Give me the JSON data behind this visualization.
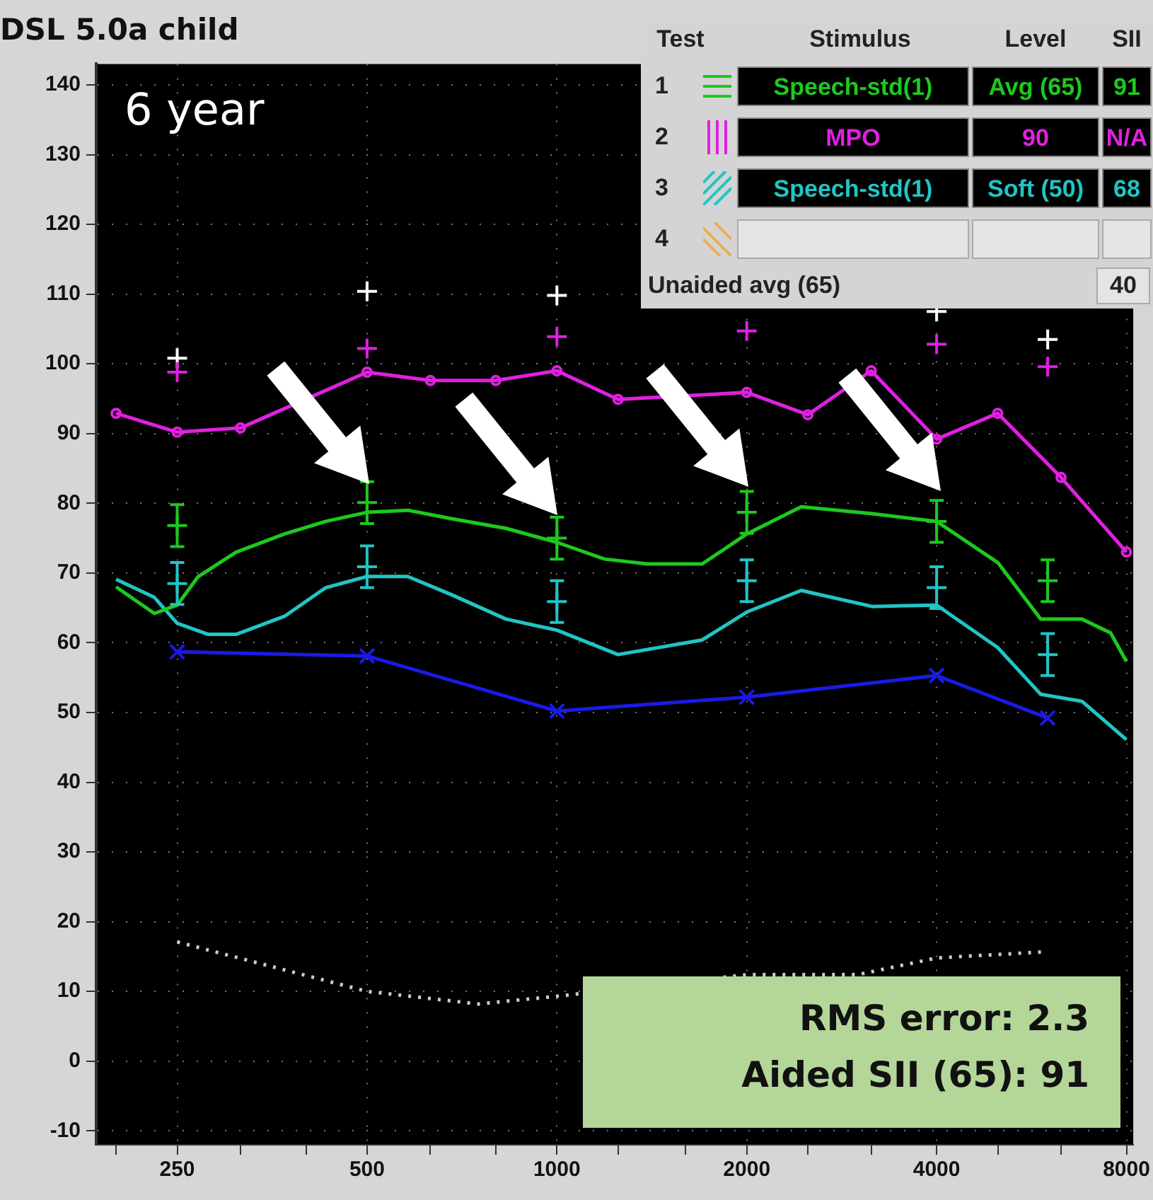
{
  "chart_data": {
    "type": "line",
    "title": "DSL 5.0a child",
    "annotations": [
      "6 year",
      "RMS error: 2.3",
      "Aided SII (65): 91",
      "Test",
      "Stimulus",
      "Level",
      "SII",
      "1",
      "Speech-std(1)",
      "Avg (65)",
      "91",
      "2",
      "MPO",
      "90",
      "N/A",
      "3",
      "Speech-std(1)",
      "Soft (50)",
      "68",
      "4",
      "Unaided avg (65)",
      "40"
    ],
    "xlim": [
      186,
      8200
    ],
    "ylim": [
      -12,
      143
    ],
    "xticks": [
      {
        "value": 200,
        "label": null
      },
      250,
      {
        "value": 315,
        "label": null
      },
      {
        "value": 400,
        "label": null
      },
      500,
      {
        "value": 630,
        "label": null
      },
      {
        "value": 800,
        "label": null
      },
      1000,
      {
        "value": 1250,
        "label": null
      },
      {
        "value": 1600,
        "label": null
      },
      2000,
      {
        "value": 2500,
        "label": null
      },
      {
        "value": 3150,
        "label": null
      },
      4000,
      {
        "value": 5000,
        "label": null
      },
      {
        "value": 6300,
        "label": null
      },
      8000
    ],
    "yticks": [
      -10,
      0,
      10,
      20,
      30,
      40,
      50,
      60,
      70,
      80,
      90,
      100,
      110,
      120,
      130,
      140
    ],
    "log": "x",
    "grid": true,
    "series": [
      {
        "type": "line",
        "color": "#1ec81e",
        "marker": "none",
        "x": [
          200,
          230,
          250,
          270,
          310,
          370,
          430,
          500,
          580,
          680,
          830,
          1000,
          1190,
          1390,
          1700,
          2000,
          2440,
          3160,
          4000,
          5000,
          5850,
          6800,
          7550,
          8000
        ],
        "values": [
          68,
          64.2,
          65.4,
          69.5,
          73,
          75.6,
          77.4,
          78.7,
          79,
          77.8,
          76.4,
          74.4,
          72,
          71.3,
          71.3,
          75.6,
          79.5,
          78.5,
          77.4,
          71.5,
          63.4,
          63.4,
          61.4,
          57.3
        ]
      },
      {
        "type": "line",
        "color": "#e020e0",
        "marker": "circle",
        "x": [
          200,
          250,
          315,
          500,
          630,
          800,
          1000,
          1250,
          2000,
          2500,
          3150,
          4000,
          5000,
          6300,
          8000
        ],
        "values": [
          92.9,
          90.2,
          90.8,
          98.8,
          97.6,
          97.6,
          99,
          94.9,
          95.9,
          92.7,
          99,
          89.2,
          92.9,
          83.7,
          73
        ]
      },
      {
        "type": "line",
        "color": "#22c4c4",
        "marker": "none",
        "x": [
          200,
          230,
          250,
          280,
          310,
          370,
          430,
          500,
          580,
          680,
          830,
          1000,
          1250,
          1700,
          2000,
          2440,
          3160,
          4000,
          5000,
          5850,
          6800,
          8000
        ],
        "values": [
          69.1,
          66.5,
          62.8,
          61.2,
          61.2,
          63.8,
          67.9,
          69.5,
          69.5,
          66.9,
          63.4,
          61.8,
          58.3,
          60.4,
          64.4,
          67.5,
          65.2,
          65.4,
          59.3,
          52.6,
          51.6,
          46.1
        ]
      },
      {
        "type": "line",
        "color": "#1a1ae6",
        "marker": "cross",
        "x": [
          250,
          500,
          1000,
          2000,
          4000,
          6000
        ],
        "values": [
          58.7,
          58.1,
          50.2,
          52.2,
          55.3,
          49.2
        ]
      },
      {
        "type": "line",
        "color": "#cccccc",
        "marker": "none",
        "line_style": "dotted",
        "x": [
          250,
          500,
          750,
          1000,
          2000,
          3000,
          4000,
          6000
        ],
        "values": [
          17.1,
          10,
          8.2,
          9.3,
          12.4,
          12.4,
          14.8,
          15.7
        ]
      },
      {
        "type": "scatter",
        "color": "#1ec81e",
        "marker": "cross",
        "x": [
          250,
          500,
          1000,
          2000,
          4000,
          6000
        ],
        "values": [
          76.8,
          80.1,
          75,
          78.7,
          77.4,
          68.9
        ],
        "errors": [
          3,
          3,
          3,
          3,
          3,
          3
        ]
      },
      {
        "type": "scatter",
        "color": "#22c4c4",
        "marker": "cross",
        "x": [
          250,
          500,
          1000,
          2000,
          4000,
          6000
        ],
        "values": [
          68.5,
          70.9,
          65.9,
          68.9,
          67.9,
          58.3
        ],
        "errors": [
          3,
          3,
          3,
          3,
          3,
          3
        ]
      },
      {
        "type": "scatter",
        "color": "#e020e0",
        "marker": "cross",
        "x": [
          250,
          500,
          1000,
          2000,
          4000,
          6000
        ],
        "values": [
          98.8,
          102.2,
          103.9,
          104.7,
          102.8,
          99.6
        ]
      },
      {
        "type": "scatter",
        "color": "#ffffff",
        "marker": "cross",
        "x": [
          250,
          500,
          1000,
          2000,
          4000,
          6000
        ],
        "values": [
          100.8,
          110.4,
          109.8,
          null,
          107.5,
          103.5
        ]
      }
    ]
  }
}
